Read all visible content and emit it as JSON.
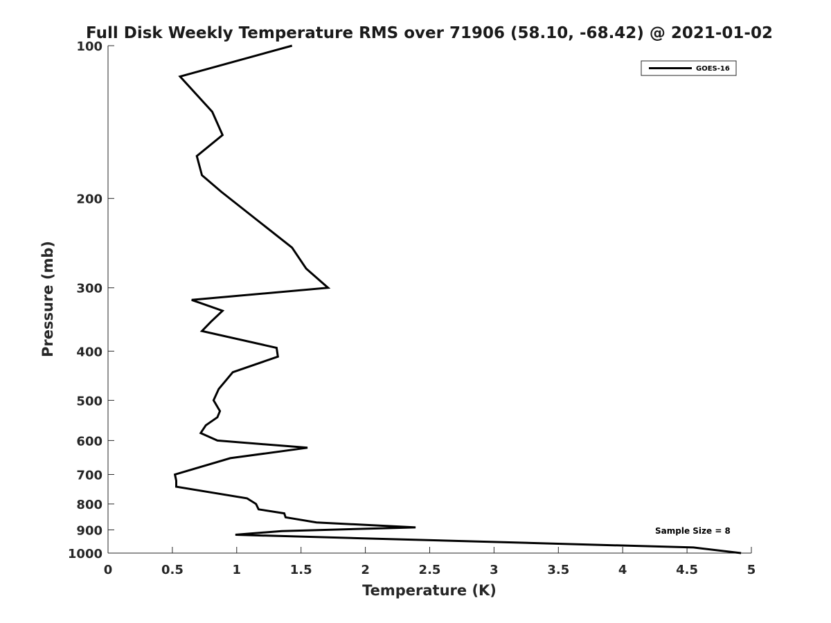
{
  "chart_data": {
    "type": "line",
    "title": "Full Disk Weekly Temperature RMS over 71906 (58.10, -68.42) @ 2021-01-02",
    "xlabel": "Temperature (K)",
    "ylabel": "Pressure (mb)",
    "xlim": [
      0,
      5
    ],
    "ylim": [
      100,
      1000
    ],
    "yscale": "log",
    "y_reversed": true,
    "x_ticks": [
      0,
      0.5,
      1,
      1.5,
      2,
      2.5,
      3,
      3.5,
      4,
      4.5,
      5
    ],
    "x_tick_labels": [
      "0",
      "0.5",
      "1",
      "1.5",
      "2",
      "2.5",
      "3",
      "3.5",
      "4",
      "4.5",
      "5"
    ],
    "y_ticks": [
      100,
      200,
      300,
      400,
      500,
      600,
      700,
      800,
      900,
      1000
    ],
    "y_tick_labels": [
      "100",
      "200",
      "300",
      "400",
      "500",
      "600",
      "700",
      "800",
      "900",
      "1000"
    ],
    "grid": false,
    "legend_position": "top-right",
    "series": [
      {
        "name": "GOES-16",
        "color": "#000000",
        "x": [
          1.43,
          0.56,
          0.81,
          0.89,
          0.69,
          0.73,
          0.88,
          1.43,
          1.54,
          1.71,
          0.65,
          0.89,
          0.8,
          0.73,
          1.31,
          1.32,
          0.97,
          0.86,
          0.82,
          0.87,
          0.85,
          0.76,
          0.72,
          0.85,
          1.55,
          0.95,
          0.52,
          0.53,
          0.53,
          1.08,
          1.15,
          1.17,
          1.37,
          1.38,
          1.62,
          2.39,
          1.35,
          0.99,
          1.96,
          4.55,
          4.92
        ],
        "y": [
          100,
          115,
          135,
          150,
          165,
          180,
          194,
          250,
          275,
          300,
          317,
          333,
          350,
          365,
          394,
          410,
          440,
          475,
          500,
          525,
          540,
          560,
          580,
          600,
          620,
          650,
          700,
          720,
          740,
          780,
          800,
          820,
          835,
          850,
          870,
          890,
          905,
          920,
          935,
          975,
          1000
        ]
      }
    ],
    "annotations": [
      "Sample Size = 8"
    ]
  }
}
